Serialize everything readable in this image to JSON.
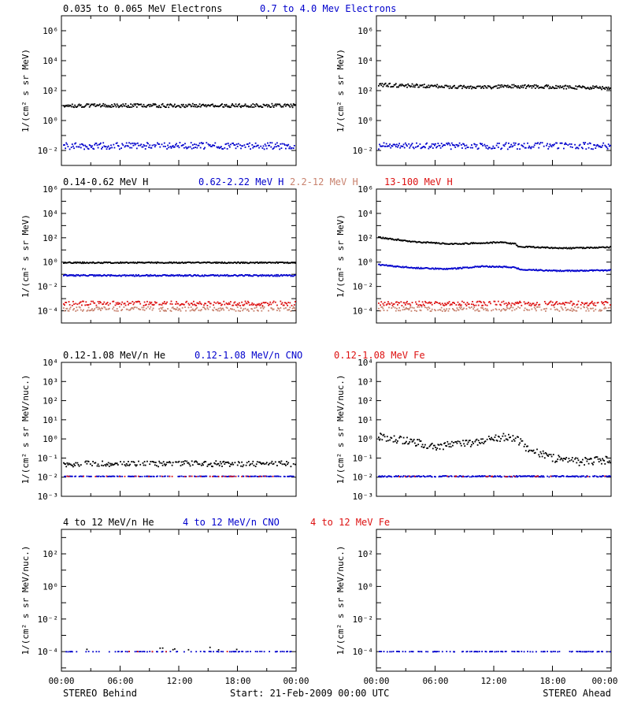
{
  "colors": {
    "black": "#000000",
    "blue": "#0000cc",
    "salmon": "#c8826e",
    "red": "#dd1111"
  },
  "footer": {
    "left": "STEREO Behind",
    "center": "Start: 21-Feb-2009 00:00 UTC",
    "right": "STEREO Ahead"
  },
  "x_ticks": [
    "00:00",
    "06:00",
    "12:00",
    "18:00",
    "00:00"
  ],
  "chart_data": [
    {
      "type": "scatter",
      "row": 0,
      "side": "left",
      "panel": "STEREO Behind",
      "log_y": true,
      "ylabel": "1/(cm² s sr MeV)",
      "ylim_exp": [
        -3,
        7
      ],
      "y_ticks": [
        {
          "exp": -2,
          "label": "10⁻²"
        },
        {
          "exp": 0,
          "label": "10⁰"
        },
        {
          "exp": 2,
          "label": "10²"
        },
        {
          "exp": 4,
          "label": "10⁴"
        },
        {
          "exp": 6,
          "label": "10⁶"
        }
      ],
      "legend": [
        {
          "name": "0.035 to 0.065 MeV Electrons",
          "color": "black"
        },
        {
          "name": "0.7 to 4.0 Mev Electrons",
          "color": "blue"
        }
      ],
      "series": [
        {
          "name": "0.035 to 0.065 MeV Electrons",
          "color": "black",
          "approx_value": 10,
          "scatter": 0.12,
          "density": 1.0,
          "profile": []
        },
        {
          "name": "0.7 to 4.0 Mev Electrons",
          "color": "blue",
          "approx_value": 0.02,
          "scatter": 0.22,
          "density": 0.9,
          "profile": []
        }
      ]
    },
    {
      "type": "scatter",
      "row": 0,
      "side": "right",
      "panel": "STEREO Ahead",
      "log_y": true,
      "ylabel": "1/(cm² s sr MeV)",
      "ylim_exp": [
        -3,
        7
      ],
      "y_ticks": [
        {
          "exp": -2,
          "label": "10⁻²"
        },
        {
          "exp": 0,
          "label": "10⁰"
        },
        {
          "exp": 2,
          "label": "10²"
        },
        {
          "exp": 4,
          "label": "10⁴"
        },
        {
          "exp": 6,
          "label": "10⁶"
        }
      ],
      "legend": [],
      "series": [
        {
          "name": "0.035 to 0.065 MeV Electrons",
          "color": "black",
          "approx_value": 12,
          "scatter": 0.12,
          "density": 1.0,
          "profile": [
            [
              0,
              1.3
            ],
            [
              0.4,
              1.15
            ],
            [
              0.62,
              1.2
            ],
            [
              1,
              1.1
            ]
          ]
        },
        {
          "name": "0.7 to 4.0 Mev Electrons",
          "color": "blue",
          "approx_value": 0.02,
          "scatter": 0.22,
          "density": 0.9,
          "profile": []
        }
      ]
    },
    {
      "type": "scatter",
      "row": 1,
      "side": "left",
      "panel": "STEREO Behind",
      "log_y": true,
      "ylabel": "1/(cm² s sr MeV)",
      "ylim_exp": [
        -5,
        6
      ],
      "y_ticks": [
        {
          "exp": -4,
          "label": "10⁻⁴"
        },
        {
          "exp": -2,
          "label": "10⁻²"
        },
        {
          "exp": 0,
          "label": "10⁰"
        },
        {
          "exp": 2,
          "label": "10²"
        },
        {
          "exp": 4,
          "label": "10⁴"
        },
        {
          "exp": 6,
          "label": "10⁶"
        }
      ],
      "legend": [
        {
          "name": "0.14-0.62 MeV H",
          "color": "black"
        },
        {
          "name": "0.62-2.22 MeV H",
          "color": "blue"
        },
        {
          "name": "2.2-12 MeV H",
          "color": "salmon"
        },
        {
          "name": "13-100 MeV H",
          "color": "red"
        }
      ],
      "series": [
        {
          "name": "0.14-0.62 MeV H",
          "color": "black",
          "approx_value": 0.9,
          "scatter": 0.05,
          "density": 1.0,
          "profile": []
        },
        {
          "name": "0.62-2.22 MeV H",
          "color": "blue",
          "approx_value": 0.08,
          "scatter": 0.06,
          "density": 1.0,
          "profile": []
        },
        {
          "name": "2.2-12 MeV H",
          "color": "salmon",
          "approx_value": 0.00014,
          "scatter": 0.18,
          "density": 0.7,
          "profile": []
        },
        {
          "name": "13-100 MeV H",
          "color": "red",
          "approx_value": 0.0004,
          "scatter": 0.18,
          "density": 0.8,
          "profile": []
        }
      ]
    },
    {
      "type": "scatter",
      "row": 1,
      "side": "right",
      "panel": "STEREO Ahead",
      "log_y": true,
      "ylabel": "1/(cm² s sr MeV)",
      "ylim_exp": [
        -5,
        6
      ],
      "y_ticks": [
        {
          "exp": -4,
          "label": "10⁻⁴"
        },
        {
          "exp": -2,
          "label": "10⁻²"
        },
        {
          "exp": 0,
          "label": "10⁰"
        },
        {
          "exp": 2,
          "label": "10²"
        },
        {
          "exp": 4,
          "label": "10⁴"
        },
        {
          "exp": 6,
          "label": "10⁶"
        }
      ],
      "legend": [],
      "series": [
        {
          "name": "0.14-0.62 MeV H",
          "color": "black",
          "approx_value": 6,
          "scatter": 0.05,
          "density": 1.0,
          "profile": [
            [
              0,
              1.25
            ],
            [
              0.15,
              0.9
            ],
            [
              0.32,
              0.7
            ],
            [
              0.52,
              0.85
            ],
            [
              0.59,
              0.72
            ],
            [
              0.6,
              0.5
            ],
            [
              0.8,
              0.35
            ],
            [
              1,
              0.45
            ]
          ]
        },
        {
          "name": "0.62-2.22 MeV H",
          "color": "blue",
          "approx_value": 0.6,
          "scatter": 0.05,
          "density": 1.0,
          "profile": [
            [
              0,
              0.0
            ],
            [
              0.15,
              -0.25
            ],
            [
              0.3,
              -0.35
            ],
            [
              0.45,
              -0.12
            ],
            [
              0.58,
              -0.2
            ],
            [
              0.62,
              -0.4
            ],
            [
              0.8,
              -0.5
            ],
            [
              1,
              -0.45
            ]
          ]
        },
        {
          "name": "2.2-12 MeV H",
          "color": "salmon",
          "approx_value": 0.00014,
          "scatter": 0.18,
          "density": 0.7,
          "profile": []
        },
        {
          "name": "13-100 MeV H",
          "color": "red",
          "approx_value": 0.0004,
          "scatter": 0.18,
          "density": 0.8,
          "profile": []
        }
      ]
    },
    {
      "type": "scatter",
      "row": 2,
      "side": "left",
      "panel": "STEREO Behind",
      "log_y": true,
      "ylabel": "1/(cm² s sr MeV/nuc.)",
      "ylim_exp": [
        -3,
        4
      ],
      "y_ticks": [
        {
          "exp": -3,
          "label": "10⁻³"
        },
        {
          "exp": -2,
          "label": "10⁻²"
        },
        {
          "exp": -1,
          "label": "10⁻¹"
        },
        {
          "exp": 0,
          "label": "10⁰"
        },
        {
          "exp": 1,
          "label": "10¹"
        },
        {
          "exp": 2,
          "label": "10²"
        },
        {
          "exp": 3,
          "label": "10³"
        },
        {
          "exp": 4,
          "label": "10⁴"
        }
      ],
      "legend": [
        {
          "name": "0.12-1.08 MeV/n He",
          "color": "black"
        },
        {
          "name": "0.12-1.08 MeV/n CNO",
          "color": "blue"
        },
        {
          "name": "0.12-1.08 MeV Fe",
          "color": "red"
        }
      ],
      "series": [
        {
          "name": "0.12-1.08 MeV/n He",
          "color": "black",
          "approx_value": 0.05,
          "scatter": 0.15,
          "density": 0.75,
          "profile": []
        },
        {
          "name": "0.12-1.08 MeV/n CNO",
          "color": "blue",
          "approx_value": 0.011,
          "scatter": 0.01,
          "density": 0.6,
          "profile": []
        },
        {
          "name": "0.12-1.08 MeV Fe",
          "color": "red",
          "approx_value": 0.011,
          "scatter": 0.01,
          "density": 0.12,
          "profile": []
        }
      ]
    },
    {
      "type": "scatter",
      "row": 2,
      "side": "right",
      "panel": "STEREO Ahead",
      "log_y": true,
      "ylabel": "1/(cm² s sr MeV/nuc.)",
      "ylim_exp": [
        -3,
        4
      ],
      "y_ticks": [
        {
          "exp": -3,
          "label": "10⁻³"
        },
        {
          "exp": -2,
          "label": "10⁻²"
        },
        {
          "exp": -1,
          "label": "10⁻¹"
        },
        {
          "exp": 0,
          "label": "10⁰"
        },
        {
          "exp": 1,
          "label": "10¹"
        },
        {
          "exp": 2,
          "label": "10²"
        },
        {
          "exp": 3,
          "label": "10³"
        },
        {
          "exp": 4,
          "label": "10⁴"
        }
      ],
      "legend": [],
      "series": [
        {
          "name": "0.12-1.08 MeV/n He",
          "color": "black",
          "approx_value": 0.8,
          "scatter": 0.2,
          "density": 0.9,
          "profile": [
            [
              0,
              0.2
            ],
            [
              0.1,
              0.05
            ],
            [
              0.25,
              -0.3
            ],
            [
              0.4,
              -0.1
            ],
            [
              0.5,
              0.1
            ],
            [
              0.55,
              0.2
            ],
            [
              0.6,
              0.05
            ],
            [
              0.65,
              -0.5
            ],
            [
              0.75,
              -0.9
            ],
            [
              0.85,
              -1.1
            ],
            [
              1,
              -1.0
            ]
          ]
        },
        {
          "name": "0.12-1.08 MeV/n CNO",
          "color": "blue",
          "approx_value": 0.011,
          "scatter": 0.03,
          "density": 0.8,
          "profile": []
        },
        {
          "name": "0.12-1.08 MeV Fe",
          "color": "red",
          "approx_value": 0.011,
          "scatter": 0.02,
          "density": 0.1,
          "profile": []
        }
      ]
    },
    {
      "type": "scatter",
      "row": 3,
      "side": "left",
      "panel": "STEREO Behind",
      "log_y": true,
      "ylabel": "1/(cm² s sr MeV/nuc.)",
      "ylim_exp": [
        -5.2,
        3.5
      ],
      "y_ticks": [
        {
          "exp": -4,
          "label": "10⁻⁴"
        },
        {
          "exp": -2,
          "label": "10⁻²"
        },
        {
          "exp": 0,
          "label": "10⁰"
        },
        {
          "exp": 2,
          "label": "10²"
        }
      ],
      "legend": [
        {
          "name": "4 to 12 MeV/n He",
          "color": "black"
        },
        {
          "name": "4 to 12 MeV/n CNO",
          "color": "blue"
        },
        {
          "name": "4 to 12 MeV Fe",
          "color": "red"
        }
      ],
      "series": [
        {
          "name": "4 to 12 MeV/n He",
          "color": "black",
          "approx_value": 0.00015,
          "scatter": 0.1,
          "density": 0.04,
          "profile": []
        },
        {
          "name": "4 to 12 MeV/n CNO",
          "color": "blue",
          "approx_value": 0.0001,
          "scatter": 0.01,
          "density": 0.35,
          "profile": []
        },
        {
          "name": "4 to 12 MeV Fe",
          "color": "red",
          "approx_value": 0.0001,
          "scatter": 0.01,
          "density": 0.02,
          "profile": []
        }
      ]
    },
    {
      "type": "scatter",
      "row": 3,
      "side": "right",
      "panel": "STEREO Ahead",
      "log_y": true,
      "ylabel": "1/(cm² s sr MeV/nuc.)",
      "ylim_exp": [
        -5.2,
        3.5
      ],
      "y_ticks": [
        {
          "exp": -4,
          "label": "10⁻⁴"
        },
        {
          "exp": -2,
          "label": "10⁻²"
        },
        {
          "exp": 0,
          "label": "10⁰"
        },
        {
          "exp": 2,
          "label": "10²"
        }
      ],
      "legend": [],
      "series": [
        {
          "name": "4 to 12 MeV/n He",
          "color": "black",
          "approx_value": 0.00015,
          "scatter": 0.1,
          "density": 0.0,
          "profile": []
        },
        {
          "name": "4 to 12 MeV/n CNO",
          "color": "blue",
          "approx_value": 0.0001,
          "scatter": 0.01,
          "density": 0.4,
          "profile": []
        },
        {
          "name": "4 to 12 MeV Fe",
          "color": "red",
          "approx_value": 0.0001,
          "scatter": 0.01,
          "density": 0.0,
          "profile": []
        }
      ]
    }
  ]
}
